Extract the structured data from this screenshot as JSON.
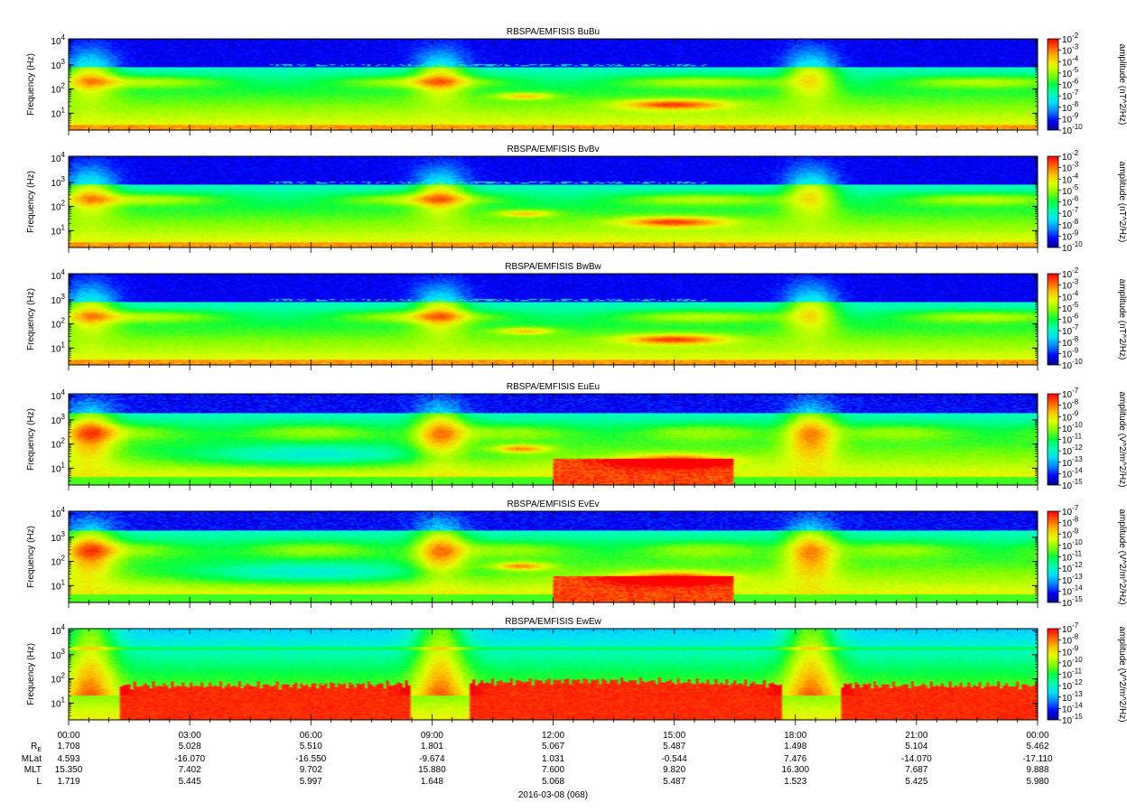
{
  "chart_data": {
    "type": "heatmap",
    "panels": [
      {
        "title": "RBSPA/EMFISIS  BuBu",
        "ylabel": "Frequency (Hz)",
        "colorbar_label": "amplitude (nT^2/Hz)",
        "colorbar_ticks": [
          "10^-2",
          "10^-3",
          "10^-4",
          "10^-5",
          "10^-6",
          "10^-7",
          "10^-8",
          "10^-9",
          "10^-10"
        ],
        "ylog": true,
        "yticks": [
          "10^1",
          "10^2",
          "10^3",
          "10^4"
        ],
        "kind": "B"
      },
      {
        "title": "RBSPA/EMFISIS  BvBv",
        "ylabel": "Frequency (Hz)",
        "colorbar_label": "amplitude (nT^2/Hz)",
        "colorbar_ticks": [
          "10^-2",
          "10^-3",
          "10^-4",
          "10^-5",
          "10^-6",
          "10^-7",
          "10^-8",
          "10^-9",
          "10^-10"
        ],
        "ylog": true,
        "yticks": [
          "10^1",
          "10^2",
          "10^3",
          "10^4"
        ],
        "kind": "B"
      },
      {
        "title": "RBSPA/EMFISIS  BwBw",
        "ylabel": "Frequency (Hz)",
        "colorbar_label": "amplitude (nT^2/Hz)",
        "colorbar_ticks": [
          "10^-2",
          "10^-3",
          "10^-4",
          "10^-5",
          "10^-6",
          "10^-7",
          "10^-8",
          "10^-9",
          "10^-10"
        ],
        "ylog": true,
        "yticks": [
          "10^1",
          "10^2",
          "10^3",
          "10^4"
        ],
        "kind": "B"
      },
      {
        "title": "RBSPA/EMFISIS  EuEu",
        "ylabel": "Frequency (Hz)",
        "colorbar_label": "amplitude (V^2/m^2/Hz)",
        "colorbar_ticks": [
          "10^-7",
          "10^-8",
          "10^-9",
          "10^-10",
          "10^-11",
          "10^-12",
          "10^-13",
          "10^-14",
          "10^-15"
        ],
        "ylog": true,
        "yticks": [
          "10^1",
          "10^2",
          "10^3",
          "10^4"
        ],
        "kind": "E"
      },
      {
        "title": "RBSPA/EMFISIS  EvEv",
        "ylabel": "Frequency (Hz)",
        "colorbar_label": "amplitude (V^2/m^2/Hz)",
        "colorbar_ticks": [
          "10^-7",
          "10^-8",
          "10^-9",
          "10^-10",
          "10^-11",
          "10^-12",
          "10^-13",
          "10^-14",
          "10^-15"
        ],
        "ylog": true,
        "yticks": [
          "10^1",
          "10^2",
          "10^3",
          "10^4"
        ],
        "kind": "E"
      },
      {
        "title": "RBSPA/EMFISIS  EwEw",
        "ylabel": "Frequency (Hz)",
        "colorbar_label": "amplitude (V^2/m^2/Hz)",
        "colorbar_ticks": [
          "10^-7",
          "10^-8",
          "10^-9",
          "10^-10",
          "10^-11",
          "10^-12",
          "10^-13",
          "10^-14",
          "10^-15"
        ],
        "ylog": true,
        "yticks": [
          "10^1",
          "10^2",
          "10^3",
          "10^4"
        ],
        "kind": "Ew"
      }
    ],
    "x_ticks": [
      "00:00",
      "03:00",
      "06:00",
      "09:00",
      "12:00",
      "15:00",
      "18:00",
      "21:00",
      "00:00"
    ],
    "x_range_hours": [
      0,
      24
    ],
    "ylim_hz": [
      2,
      12000
    ],
    "ephemeris": {
      "rows": [
        {
          "label": "R_E",
          "values": [
            "1.708",
            "5.028",
            "5.510",
            "1.801",
            "5.067",
            "5.487",
            "1.498",
            "5.104",
            "5.462"
          ]
        },
        {
          "label": "MLat",
          "values": [
            "4.593",
            "-16.070",
            "-16.550",
            "-9.674",
            "1.031",
            "-0.544",
            "7.476",
            "-14.070",
            "-17.110"
          ]
        },
        {
          "label": "MLT",
          "values": [
            "15.350",
            "7.402",
            "9.702",
            "15.880",
            "7.600",
            "9.820",
            "16.300",
            "7.687",
            "9.888"
          ]
        },
        {
          "label": "L",
          "values": [
            "1.719",
            "5.445",
            "5.997",
            "1.648",
            "5.068",
            "5.487",
            "1.523",
            "5.425",
            "5.980"
          ]
        }
      ]
    },
    "date_label": "2016-03-08 (068)",
    "colorscale": [
      "#00008c",
      "#0000ff",
      "#0080ff",
      "#00e0ff",
      "#00ffb0",
      "#00ff40",
      "#80ff00",
      "#e0ff00",
      "#ffc000",
      "#ff6000",
      "#ff0000"
    ]
  }
}
